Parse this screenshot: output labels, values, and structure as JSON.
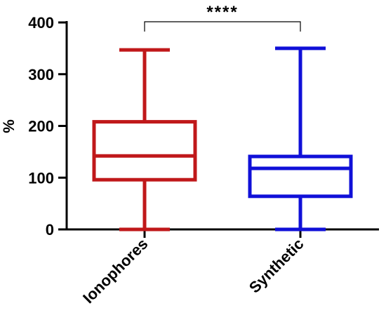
{
  "chart_data": {
    "type": "box",
    "title": "",
    "xlabel": "",
    "ylabel": "%",
    "ylim": [
      0,
      400
    ],
    "yticks": [
      0,
      100,
      200,
      300,
      400
    ],
    "categories": [
      "Ionophores",
      "Synthetic"
    ],
    "series": [
      {
        "category": "Ionophores",
        "color": "#c0181a",
        "min": 0,
        "q1": 96,
        "median": 142,
        "q3": 208,
        "max": 347
      },
      {
        "category": "Synthetic",
        "color": "#1010d8",
        "min": 0,
        "q1": 64,
        "median": 118,
        "q3": 141,
        "max": 350
      }
    ],
    "significance": {
      "label": "****",
      "between": [
        "Ionophores",
        "Synthetic"
      ]
    },
    "grid": false,
    "legend": "none"
  }
}
